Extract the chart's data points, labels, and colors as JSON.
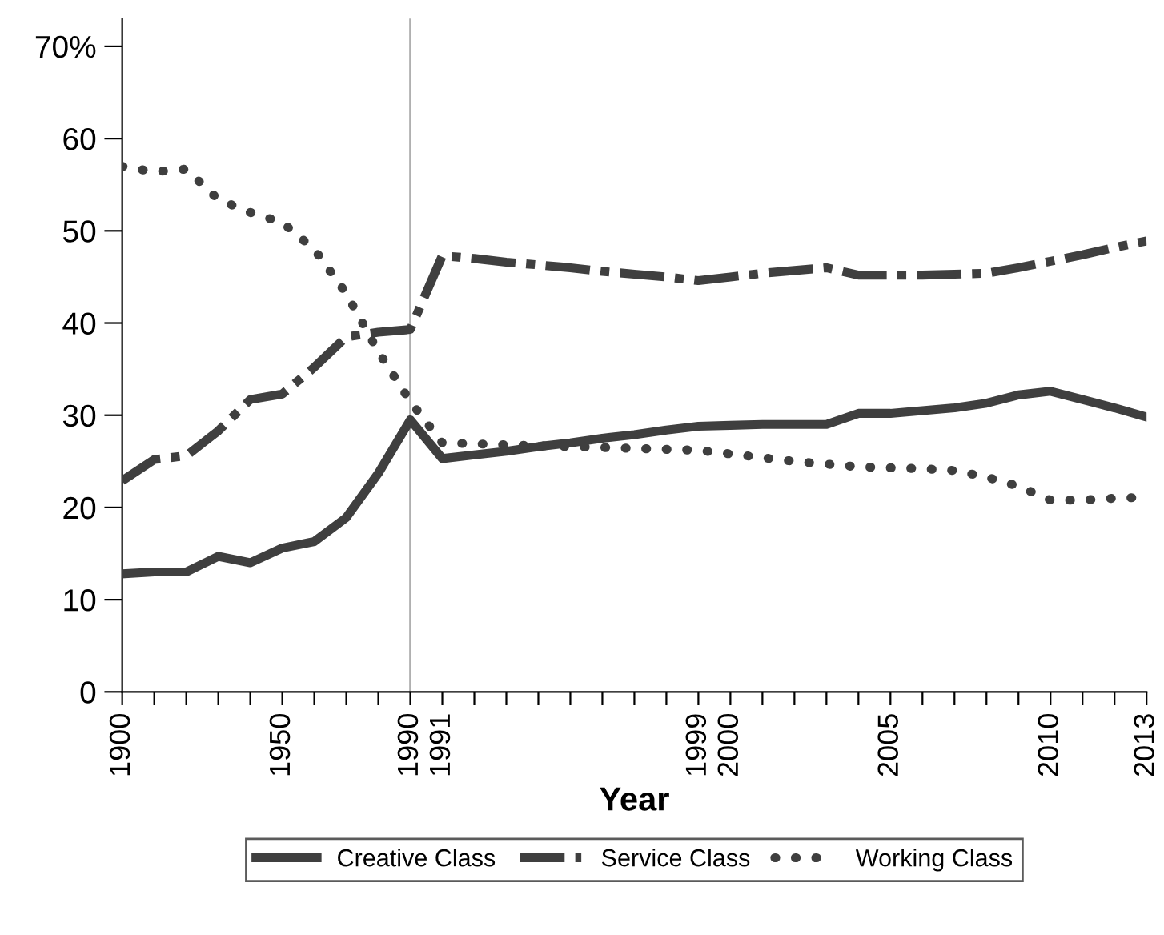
{
  "chart_data": {
    "type": "line",
    "xlabel": "Year",
    "categories": [
      "1900",
      null,
      null,
      null,
      null,
      "1950",
      null,
      null,
      null,
      "1990",
      "1991",
      null,
      null,
      null,
      null,
      null,
      null,
      null,
      "1999",
      "2000",
      null,
      null,
      null,
      null,
      "2005",
      null,
      null,
      null,
      null,
      "2010",
      null,
      null,
      "2013"
    ],
    "series": [
      {
        "name": "Creative Class",
        "color": "#3f3f3f",
        "line_style": "solid",
        "values": [
          12.8,
          13.0,
          13.0,
          14.7,
          14.0,
          15.6,
          16.3,
          18.9,
          23.7,
          29.5,
          25.3,
          25.7,
          26.1,
          26.6,
          27.0,
          27.5,
          27.9,
          28.4,
          28.8,
          28.9,
          29.0,
          29.0,
          29.0,
          30.2,
          30.2,
          30.5,
          30.8,
          31.3,
          32.2,
          32.6,
          31.7,
          30.8,
          29.8
        ]
      },
      {
        "name": "Service Class",
        "color": "#3f3f3f",
        "line_style": "dashdot",
        "values": [
          22.9,
          25.2,
          25.6,
          28.3,
          31.7,
          32.3,
          35.2,
          38.5,
          39.0,
          39.3,
          47.3,
          47.0,
          46.6,
          46.3,
          46.0,
          45.6,
          45.3,
          45.0,
          44.6,
          45.0,
          45.4,
          45.7,
          46.0,
          45.2,
          45.2,
          45.2,
          45.3,
          45.4,
          46.0,
          46.7,
          47.4,
          48.2,
          48.9
        ]
      },
      {
        "name": "Working Class",
        "color": "#3f3f3f",
        "line_style": "dotted",
        "values": [
          57.0,
          56.4,
          56.7,
          53.4,
          52.0,
          50.9,
          48.0,
          43.2,
          36.9,
          31.5,
          27.0,
          26.9,
          26.8,
          26.7,
          26.6,
          26.5,
          26.4,
          26.3,
          26.2,
          25.8,
          25.4,
          25.0,
          24.7,
          24.4,
          24.3,
          24.2,
          24.0,
          23.3,
          22.3,
          20.8,
          20.8,
          21.0,
          21.1
        ]
      }
    ],
    "ylim": [
      0,
      73
    ],
    "yticks": [
      0,
      10,
      20,
      30,
      40,
      50,
      60,
      {
        "value": 70,
        "label": "70%"
      }
    ],
    "ref_lines": [
      {
        "axis": "x",
        "value": "1990",
        "color": "#b0b0b0",
        "line_style": "solid"
      }
    ],
    "grid": false,
    "legend": "bottom",
    "marker": "none"
  }
}
